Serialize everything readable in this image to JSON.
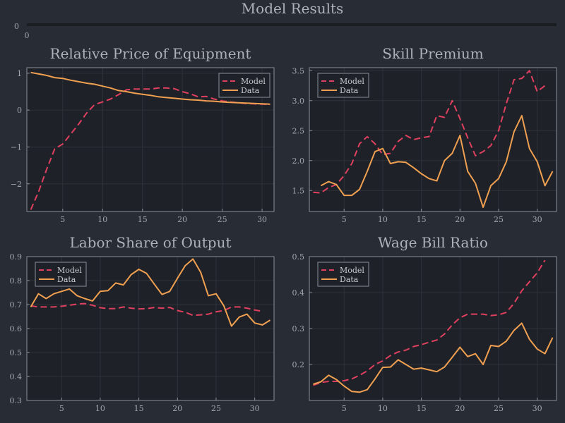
{
  "title": "Model Results",
  "colors": {
    "model": "#e0405f",
    "data": "#f0a050",
    "background": "#282c34",
    "plot_bg": "#1e2127"
  },
  "top_strip": {
    "ytick": "0",
    "xtick": "0"
  },
  "chart_data": [
    {
      "type": "line",
      "title": "Relative Price of Equipment",
      "xlim": [
        0.5,
        31.5
      ],
      "ylim": [
        -2.75,
        1.15
      ],
      "xticks": [
        5,
        10,
        15,
        20,
        25,
        30
      ],
      "yticks": [
        -2,
        -1,
        0,
        1
      ],
      "ytick_labels": [
        "−2",
        "−1",
        "0",
        "1"
      ],
      "legend": "top-right",
      "series": [
        {
          "name": "Model",
          "style": "dashed",
          "x": [
            1,
            2,
            3,
            4,
            5,
            6,
            7,
            8,
            9,
            10,
            11,
            12,
            13,
            14,
            15,
            16,
            17,
            18,
            19,
            20,
            21,
            22,
            23,
            24,
            25,
            26,
            27,
            28,
            29,
            30,
            31
          ],
          "y": [
            -2.7,
            -2.2,
            -1.6,
            -1.05,
            -0.92,
            -0.65,
            -0.38,
            -0.08,
            0.15,
            0.22,
            0.3,
            0.42,
            0.55,
            0.57,
            0.57,
            0.57,
            0.6,
            0.6,
            0.58,
            0.5,
            0.44,
            0.36,
            0.37,
            0.3,
            0.25,
            0.22,
            0.2,
            0.18,
            0.17,
            0.16,
            0.15
          ]
        },
        {
          "name": "Data",
          "style": "solid",
          "x": [
            1,
            2,
            3,
            4,
            5,
            6,
            7,
            8,
            9,
            10,
            11,
            12,
            13,
            14,
            15,
            16,
            17,
            18,
            19,
            20,
            21,
            22,
            23,
            24,
            25,
            26,
            27,
            28,
            29,
            30,
            31
          ],
          "y": [
            1.02,
            0.98,
            0.94,
            0.88,
            0.86,
            0.81,
            0.77,
            0.73,
            0.7,
            0.65,
            0.6,
            0.53,
            0.5,
            0.46,
            0.43,
            0.4,
            0.36,
            0.34,
            0.32,
            0.3,
            0.28,
            0.27,
            0.25,
            0.24,
            0.22,
            0.21,
            0.2,
            0.19,
            0.18,
            0.17,
            0.16
          ]
        }
      ]
    },
    {
      "type": "line",
      "title": "Skill Premium",
      "xlim": [
        0.5,
        32.5
      ],
      "ylim": [
        1.15,
        3.55
      ],
      "xticks": [
        5,
        10,
        15,
        20,
        25,
        30
      ],
      "yticks": [
        1.5,
        2.0,
        2.5,
        3.0,
        3.5
      ],
      "ytick_labels": [
        "1.5",
        "2.0",
        "2.5",
        "3.0",
        "3.5"
      ],
      "legend": "top-left",
      "series": [
        {
          "name": "Model",
          "style": "dashed",
          "x": [
            1,
            2,
            3,
            4,
            5,
            6,
            7,
            8,
            9,
            10,
            11,
            12,
            13,
            14,
            15,
            16,
            17,
            18,
            19,
            20,
            21,
            22,
            23,
            24,
            25,
            26,
            27,
            28,
            29,
            30,
            31
          ],
          "y": [
            1.47,
            1.46,
            1.55,
            1.6,
            1.75,
            1.95,
            2.28,
            2.4,
            2.28,
            2.1,
            2.12,
            2.32,
            2.42,
            2.35,
            2.38,
            2.4,
            2.75,
            2.72,
            3.0,
            2.7,
            2.38,
            2.08,
            2.15,
            2.25,
            2.5,
            2.95,
            3.35,
            3.37,
            3.5,
            3.15,
            3.25
          ]
        },
        {
          "name": "Data",
          "style": "solid",
          "x": [
            2,
            3,
            4,
            5,
            6,
            7,
            8,
            9,
            10,
            11,
            12,
            13,
            14,
            15,
            16,
            17,
            18,
            19,
            20,
            21,
            22,
            23,
            24,
            25,
            26,
            27,
            28,
            29,
            30,
            31,
            32
          ],
          "y": [
            1.58,
            1.65,
            1.6,
            1.42,
            1.42,
            1.52,
            1.82,
            2.15,
            2.2,
            1.95,
            1.98,
            1.97,
            1.88,
            1.78,
            1.7,
            1.66,
            2.0,
            2.12,
            2.42,
            1.82,
            1.62,
            1.22,
            1.58,
            1.7,
            1.98,
            2.48,
            2.75,
            2.2,
            1.98,
            1.58,
            1.82
          ]
        }
      ]
    },
    {
      "type": "line",
      "title": "Labor Share of Output",
      "xlim": [
        0.5,
        32.5
      ],
      "ylim": [
        0.3,
        0.9
      ],
      "xticks": [
        5,
        10,
        15,
        20,
        25,
        30
      ],
      "yticks": [
        0.3,
        0.4,
        0.5,
        0.6,
        0.7,
        0.8,
        0.9
      ],
      "ytick_labels": [
        "0.3",
        "0.4",
        "0.5",
        "0.6",
        "0.7",
        "0.8",
        "0.9"
      ],
      "legend": "top-left",
      "series": [
        {
          "name": "Model",
          "style": "dashed",
          "x": [
            1,
            2,
            3,
            4,
            5,
            6,
            7,
            8,
            9,
            10,
            11,
            12,
            13,
            14,
            15,
            16,
            17,
            18,
            19,
            20,
            21,
            22,
            23,
            24,
            25,
            26,
            27,
            28,
            29,
            30,
            31
          ],
          "y": [
            0.695,
            0.69,
            0.69,
            0.69,
            0.693,
            0.697,
            0.702,
            0.704,
            0.697,
            0.687,
            0.683,
            0.683,
            0.69,
            0.685,
            0.682,
            0.683,
            0.688,
            0.685,
            0.688,
            0.675,
            0.668,
            0.655,
            0.657,
            0.66,
            0.67,
            0.675,
            0.69,
            0.69,
            0.685,
            0.677,
            0.672
          ]
        },
        {
          "name": "Data",
          "style": "solid",
          "x": [
            1,
            2,
            3,
            4,
            5,
            6,
            7,
            8,
            9,
            10,
            11,
            12,
            13,
            14,
            15,
            16,
            17,
            18,
            19,
            20,
            21,
            22,
            23,
            24,
            25,
            26,
            27,
            28,
            29,
            30,
            31,
            32
          ],
          "y": [
            0.69,
            0.745,
            0.725,
            0.745,
            0.755,
            0.765,
            0.737,
            0.725,
            0.715,
            0.755,
            0.758,
            0.79,
            0.782,
            0.825,
            0.847,
            0.83,
            0.785,
            0.742,
            0.755,
            0.81,
            0.862,
            0.89,
            0.835,
            0.737,
            0.745,
            0.695,
            0.61,
            0.648,
            0.66,
            0.623,
            0.615,
            0.635
          ]
        }
      ]
    },
    {
      "type": "line",
      "title": "Wage Bill Ratio",
      "xlim": [
        0.5,
        32.5
      ],
      "ylim": [
        0.1,
        0.5
      ],
      "xticks": [
        5,
        10,
        15,
        20,
        25,
        30
      ],
      "yticks": [
        0.2,
        0.3,
        0.4,
        0.5
      ],
      "ytick_labels": [
        "0.2",
        "0.3",
        "0.4",
        "0.5"
      ],
      "legend": "top-left",
      "series": [
        {
          "name": "Model",
          "style": "dashed",
          "x": [
            1,
            2,
            3,
            4,
            5,
            6,
            7,
            8,
            9,
            10,
            11,
            12,
            13,
            14,
            15,
            16,
            17,
            18,
            19,
            20,
            21,
            22,
            23,
            24,
            25,
            26,
            27,
            28,
            29,
            30,
            31
          ],
          "y": [
            0.142,
            0.15,
            0.153,
            0.153,
            0.155,
            0.16,
            0.17,
            0.182,
            0.2,
            0.21,
            0.225,
            0.235,
            0.24,
            0.25,
            0.255,
            0.262,
            0.268,
            0.285,
            0.31,
            0.33,
            0.34,
            0.34,
            0.34,
            0.336,
            0.338,
            0.345,
            0.37,
            0.405,
            0.43,
            0.455,
            0.49
          ]
        },
        {
          "name": "Data",
          "style": "solid",
          "x": [
            1,
            2,
            3,
            4,
            5,
            6,
            7,
            8,
            9,
            10,
            11,
            12,
            13,
            14,
            15,
            16,
            17,
            18,
            19,
            20,
            21,
            22,
            23,
            24,
            25,
            26,
            27,
            28,
            29,
            30,
            31,
            32
          ],
          "y": [
            0.145,
            0.152,
            0.17,
            0.158,
            0.14,
            0.125,
            0.123,
            0.13,
            0.16,
            0.192,
            0.193,
            0.213,
            0.2,
            0.187,
            0.19,
            0.185,
            0.18,
            0.193,
            0.22,
            0.248,
            0.222,
            0.23,
            0.2,
            0.253,
            0.25,
            0.265,
            0.295,
            0.315,
            0.27,
            0.243,
            0.23,
            0.275
          ]
        }
      ]
    }
  ]
}
